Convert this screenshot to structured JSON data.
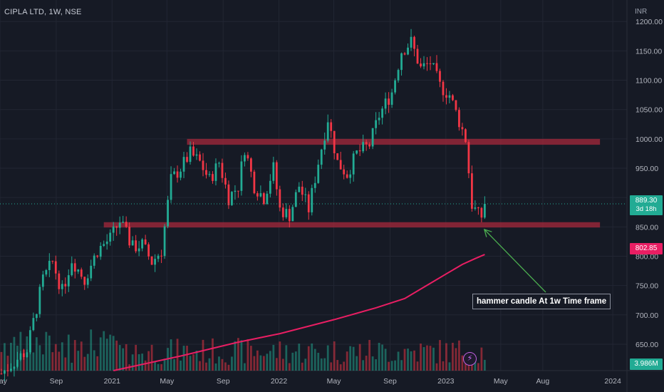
{
  "header": {
    "symbol_title": "CIPLA LTD, 1W, NSE",
    "currency": "INR"
  },
  "colors": {
    "background": "#161a25",
    "bull": "#22ab94",
    "bear": "#f23645",
    "moving_average": "#e91e63",
    "zone": "#a0283a",
    "arrow": "#4caf50",
    "axis_text": "#b2b5be"
  },
  "annotation": {
    "text": "hammer candle At 1w Time frame",
    "target_date": "2023-03-20",
    "target_price": 848
  },
  "tags": {
    "last_price": "889.30",
    "countdown": "3d 18h",
    "ma_value": "802.85",
    "volume_value": "3.986M"
  },
  "chart_data": {
    "type": "candlestick",
    "title": "CIPLA LTD, 1W, NSE",
    "interval": "1W",
    "currency": "INR",
    "x_range": [
      "2020-05-01",
      "2024-02-01"
    ],
    "y_range": [
      605,
      1210
    ],
    "y_ticks": [
      650,
      700,
      750,
      800,
      850,
      900,
      950,
      1000,
      1050,
      1100,
      1150,
      1200
    ],
    "y_tick_labels": [
      "650.00",
      "700.00",
      "750.00",
      "800.00",
      "850.00",
      "900.00",
      "950.00",
      "1000.00",
      "1050.00",
      "1100.00",
      "1150.00",
      "1200.00"
    ],
    "x_ticks": [
      {
        "label": "May",
        "date": "2020-05-01"
      },
      {
        "label": "Sep",
        "date": "2020-09-01"
      },
      {
        "label": "2021",
        "date": "2021-01-01"
      },
      {
        "label": "May",
        "date": "2021-05-01"
      },
      {
        "label": "Sep",
        "date": "2021-09-01"
      },
      {
        "label": "2022",
        "date": "2022-01-01"
      },
      {
        "label": "May",
        "date": "2022-05-01"
      },
      {
        "label": "Sep",
        "date": "2022-09-01"
      },
      {
        "label": "2023",
        "date": "2023-01-01"
      },
      {
        "label": "May",
        "date": "2023-05-01"
      },
      {
        "label": "Aug",
        "date": "2023-08-01"
      },
      {
        "label": "2024",
        "date": "2024-01-01"
      }
    ],
    "grid": true,
    "last_price": 889.3,
    "ma_last": 802.85,
    "zones": [
      {
        "start": "2021-06-14",
        "end": "2023-12-04",
        "low": 990,
        "high": 1000
      },
      {
        "start": "2020-12-14",
        "end": "2023-12-04",
        "low": 849,
        "high": 858
      }
    ],
    "price_path": [
      [
        "2020-05-04",
        600
      ],
      [
        "2020-06-01",
        620
      ],
      [
        "2020-06-29",
        640
      ],
      [
        "2020-08-03",
        760
      ],
      [
        "2020-08-24",
        790
      ],
      [
        "2020-09-14",
        740
      ],
      [
        "2020-10-05",
        795
      ],
      [
        "2020-11-02",
        760
      ],
      [
        "2020-11-30",
        810
      ],
      [
        "2020-12-28",
        830
      ],
      [
        "2021-01-18",
        860
      ],
      [
        "2021-02-15",
        815
      ],
      [
        "2021-03-08",
        820
      ],
      [
        "2021-03-29",
        790
      ],
      [
        "2021-04-19",
        810
      ],
      [
        "2021-05-10",
        930
      ],
      [
        "2021-05-31",
        950
      ],
      [
        "2021-06-21",
        975
      ],
      [
        "2021-07-12",
        960
      ],
      [
        "2021-08-02",
        930
      ],
      [
        "2021-08-23",
        960
      ],
      [
        "2021-09-13",
        900
      ],
      [
        "2021-10-04",
        920
      ],
      [
        "2021-10-18",
        985
      ],
      [
        "2021-11-08",
        920
      ],
      [
        "2021-11-29",
        900
      ],
      [
        "2021-12-20",
        950
      ],
      [
        "2022-01-03",
        880
      ],
      [
        "2022-01-24",
        870
      ],
      [
        "2022-02-14",
        920
      ],
      [
        "2022-03-07",
        880
      ],
      [
        "2022-03-28",
        960
      ],
      [
        "2022-04-18",
        1035
      ],
      [
        "2022-05-09",
        960
      ],
      [
        "2022-05-30",
        940
      ],
      [
        "2022-06-20",
        975
      ],
      [
        "2022-07-18",
        990
      ],
      [
        "2022-08-08",
        1040
      ],
      [
        "2022-09-05",
        1080
      ],
      [
        "2022-09-26",
        1150
      ],
      [
        "2022-10-17",
        1165
      ],
      [
        "2022-11-07",
        1120
      ],
      [
        "2022-11-28",
        1130
      ],
      [
        "2022-12-19",
        1090
      ],
      [
        "2023-01-09",
        1075
      ],
      [
        "2023-01-30",
        1030
      ],
      [
        "2023-02-13",
        1000
      ],
      [
        "2023-02-27",
        888
      ],
      [
        "2023-03-13",
        870
      ],
      [
        "2023-03-20",
        868
      ],
      [
        "2023-03-27",
        889.3
      ]
    ],
    "volume_axis_label": "3.986M",
    "moving_average_path": [
      [
        "2021-01-04",
        605
      ],
      [
        "2021-06-01",
        630
      ],
      [
        "2021-10-01",
        653
      ],
      [
        "2022-01-03",
        668
      ],
      [
        "2022-05-02",
        692
      ],
      [
        "2022-08-01",
        712
      ],
      [
        "2022-10-03",
        728
      ],
      [
        "2022-12-05",
        757
      ],
      [
        "2023-01-02",
        770
      ],
      [
        "2023-02-06",
        786
      ],
      [
        "2023-03-06",
        796
      ],
      [
        "2023-03-27",
        802.85
      ]
    ]
  }
}
